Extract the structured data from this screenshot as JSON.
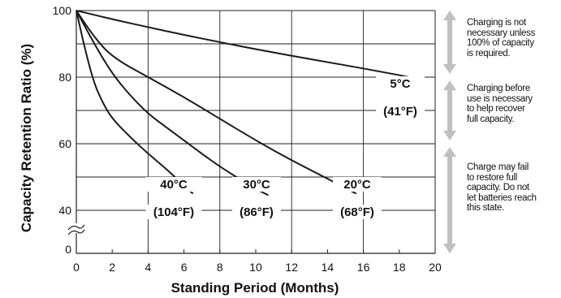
{
  "chart_data": {
    "type": "line",
    "title": "",
    "xlabel": "Standing Period (Months)",
    "ylabel": "Capacity Retention Ratio (%)",
    "xlim": [
      0,
      20
    ],
    "xticks": [
      "0",
      "2",
      "4",
      "6",
      "8",
      "10",
      "12",
      "14",
      "16",
      "18",
      "20"
    ],
    "yticks": [
      "100",
      "80",
      "60",
      "40",
      "0"
    ],
    "y_axis_break": true,
    "grid": true,
    "series": [
      {
        "name": "5°C (41°F)",
        "label_top": "5°C",
        "label_bottom": "(41°F)",
        "x": [
          0,
          2,
          4,
          6,
          8,
          10,
          12,
          14,
          16,
          18,
          19.3
        ],
        "y": [
          100,
          97.4,
          95,
          92.7,
          90.5,
          88.4,
          86.4,
          84.5,
          82.6,
          80.6,
          79.2
        ]
      },
      {
        "name": "20°C (68°F)",
        "label_top": "20°C",
        "label_bottom": "(68°F)",
        "x": [
          0,
          1,
          2,
          4,
          6,
          8,
          10,
          12,
          14,
          15.6
        ],
        "y": [
          100,
          92,
          86,
          80,
          74,
          67.5,
          61,
          55,
          49.5,
          45
        ]
      },
      {
        "name": "30°C (86°F)",
        "label_top": "30°C",
        "label_bottom": "(86°F)",
        "x": [
          0,
          1,
          2,
          3,
          4,
          5,
          6,
          8,
          10,
          10.7
        ],
        "y": [
          100,
          90,
          81,
          74.5,
          69,
          65,
          61,
          53,
          46.5,
          44.5
        ]
      },
      {
        "name": "40°C (104°F)",
        "label_top": "40°C",
        "label_bottom": "(104°F)",
        "x": [
          0,
          0.5,
          1,
          1.5,
          2,
          3,
          4,
          5,
          6,
          6.5
        ],
        "y": [
          100,
          88,
          78,
          72,
          67.5,
          62,
          57,
          52.5,
          47.5,
          45
        ]
      }
    ],
    "ranges": [
      {
        "text": "Charging is not necessary unless 100% of capacity is required.",
        "from": 100,
        "to": 81
      },
      {
        "text": "Charging before use is necessary to help recover full capacity.",
        "from": 79,
        "to": 61
      },
      {
        "text": "Charge may fail to restore full capacity. Do not let batteries reach this state.",
        "from": 59,
        "to": 0
      }
    ]
  },
  "notes": [
    {
      "lines": [
        "Charging is not",
        "necessary unless",
        "100% of capacity",
        "is required."
      ]
    },
    {
      "lines": [
        "Charging before",
        "use is necessary",
        "to help recover",
        "full capacity."
      ]
    },
    {
      "lines": [
        "Charge may fail",
        "to restore full",
        "capacity. Do not",
        "let batteries reach",
        "this state."
      ]
    }
  ],
  "colors": {
    "curve": "#1a1a1a",
    "grid": "#222222",
    "arrow": "#c0c0c0"
  }
}
